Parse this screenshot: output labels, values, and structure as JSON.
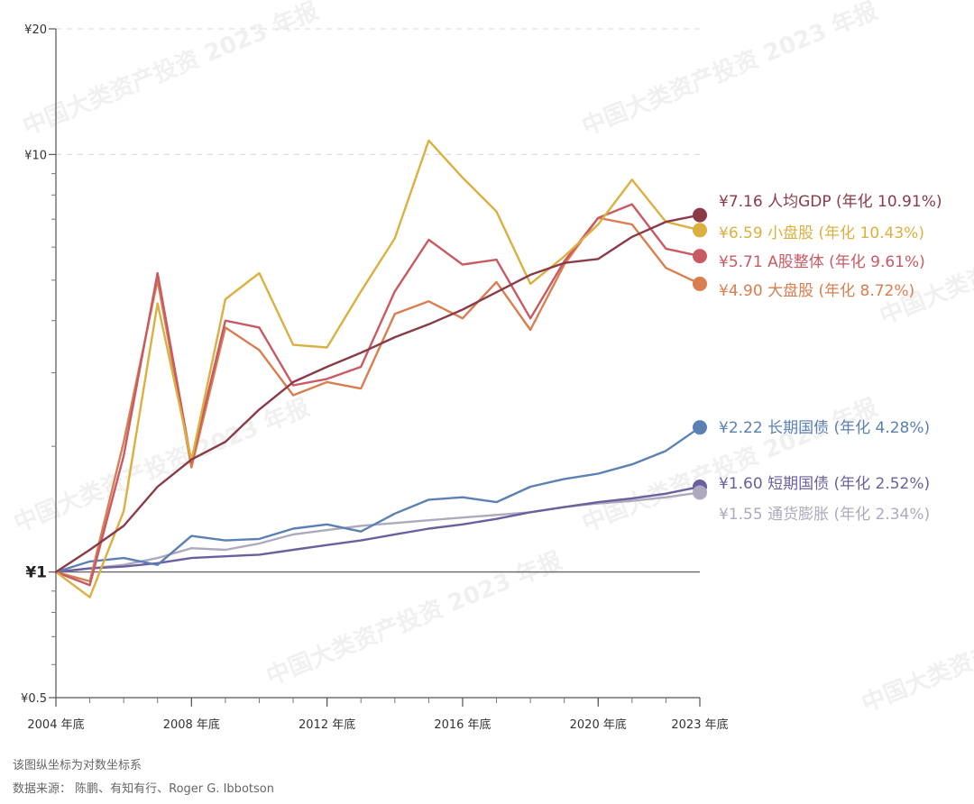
{
  "chart_data": {
    "type": "line",
    "title": "",
    "xlabel": "",
    "ylabel": "",
    "y_scale": "log",
    "ylim": [
      0.5,
      20
    ],
    "xlim": [
      2004,
      2023
    ],
    "grid": "dashed horizontal at 10 and 20",
    "y_ticks": [
      {
        "value": 20,
        "label": "¥20"
      },
      {
        "value": 10,
        "label": "¥10"
      },
      {
        "value": 1,
        "label": "¥1"
      },
      {
        "value": 0.5,
        "label": "¥0.5"
      }
    ],
    "x_ticks": [
      {
        "value": 2004,
        "label": "2004 年底"
      },
      {
        "value": 2008,
        "label": "2008 年底"
      },
      {
        "value": 2012,
        "label": "2012 年底"
      },
      {
        "value": 2016,
        "label": "2016 年底"
      },
      {
        "value": 2020,
        "label": "2020 年底"
      },
      {
        "value": 2023,
        "label": "2023 年底"
      }
    ],
    "x": [
      2004,
      2005,
      2006,
      2007,
      2008,
      2009,
      2010,
      2011,
      2012,
      2013,
      2014,
      2015,
      2016,
      2017,
      2018,
      2019,
      2020,
      2021,
      2022,
      2023
    ],
    "series": [
      {
        "key": "gdp",
        "color": "#8b3a48",
        "label": "¥7.16 人均GDP (年化 10.91%)",
        "values": [
          1.0,
          1.13,
          1.29,
          1.6,
          1.86,
          2.05,
          2.45,
          2.85,
          3.1,
          3.35,
          3.65,
          3.92,
          4.25,
          4.68,
          5.15,
          5.5,
          5.62,
          6.35,
          6.9,
          7.16
        ]
      },
      {
        "key": "small",
        "color": "#dbb040",
        "label": "¥6.59 小盘股 (年化 10.43%)",
        "values": [
          1.0,
          0.87,
          1.4,
          4.4,
          1.85,
          4.5,
          5.2,
          3.5,
          3.45,
          4.7,
          6.3,
          10.8,
          8.8,
          7.3,
          4.9,
          5.7,
          6.8,
          8.7,
          6.9,
          6.59
        ]
      },
      {
        "key": "ashare",
        "color": "#c85a64",
        "label": "¥5.71 A股整体 (年化 9.61%)",
        "values": [
          1.0,
          0.93,
          1.9,
          5.2,
          1.83,
          4.0,
          3.85,
          2.8,
          2.9,
          3.1,
          4.7,
          6.25,
          5.45,
          5.6,
          4.05,
          5.55,
          7.05,
          7.6,
          5.95,
          5.71
        ]
      },
      {
        "key": "large",
        "color": "#d87e50",
        "label": "¥4.90 大盘股 (年化 8.72%)",
        "values": [
          1.0,
          0.95,
          2.05,
          5.0,
          1.78,
          3.85,
          3.4,
          2.65,
          2.85,
          2.75,
          4.15,
          4.45,
          4.05,
          4.95,
          3.8,
          5.45,
          7.05,
          6.8,
          5.35,
          4.9
        ]
      },
      {
        "key": "longbond",
        "color": "#5b80b3",
        "label": "¥2.22 长期国债 (年化 4.28%)",
        "values": [
          1.0,
          1.06,
          1.08,
          1.04,
          1.22,
          1.19,
          1.2,
          1.27,
          1.3,
          1.25,
          1.38,
          1.49,
          1.51,
          1.47,
          1.6,
          1.67,
          1.72,
          1.81,
          1.95,
          2.22
        ]
      },
      {
        "key": "shortbond",
        "color": "#6d5f9e",
        "label": "¥1.60 短期国债 (年化 2.52%)",
        "values": [
          1.0,
          1.02,
          1.03,
          1.05,
          1.08,
          1.09,
          1.1,
          1.13,
          1.16,
          1.19,
          1.23,
          1.27,
          1.3,
          1.34,
          1.39,
          1.43,
          1.47,
          1.5,
          1.54,
          1.6
        ]
      },
      {
        "key": "inflation",
        "color": "#aea9be",
        "label": "¥1.55 通货膨胀 (年化 2.34%)",
        "values": [
          1.0,
          1.02,
          1.04,
          1.08,
          1.14,
          1.13,
          1.17,
          1.23,
          1.26,
          1.29,
          1.31,
          1.33,
          1.35,
          1.37,
          1.39,
          1.43,
          1.46,
          1.48,
          1.51,
          1.55
        ]
      }
    ],
    "legend_placement": "right, aligned to series end values",
    "watermark": "中国大类资产投资 2023 年报"
  },
  "footnote": {
    "note": "该图纵坐标为对数坐标系",
    "source": "数据来源： 陈鹏、有知有行、Roger G. Ibbotson"
  }
}
